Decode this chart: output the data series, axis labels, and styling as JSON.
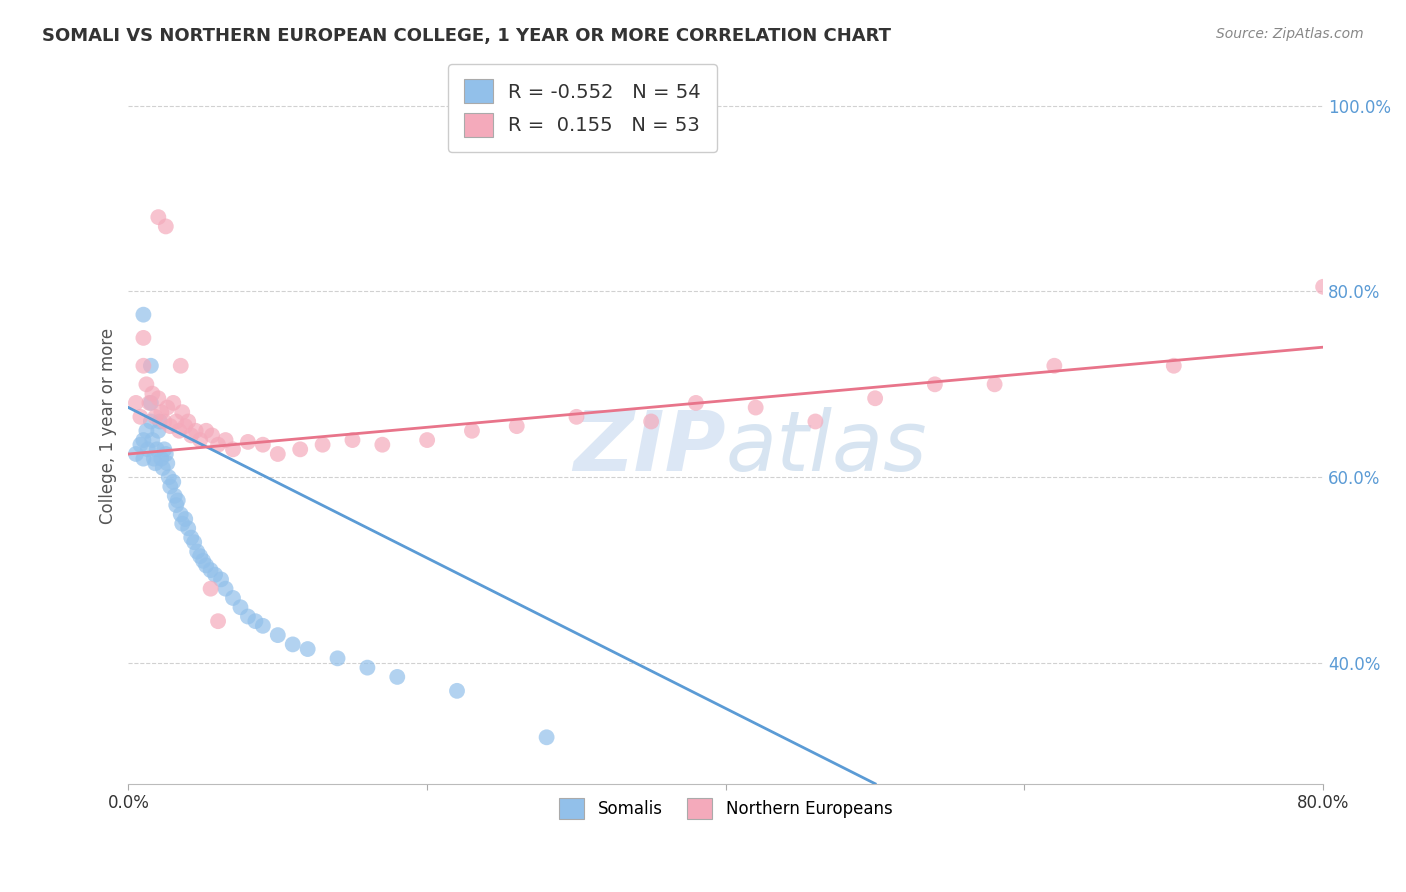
{
  "title": "SOMALI VS NORTHERN EUROPEAN COLLEGE, 1 YEAR OR MORE CORRELATION CHART",
  "source": "Source: ZipAtlas.com",
  "ylabel": "College, 1 year or more",
  "watermark": "ZIPatlas",
  "legend": {
    "blue_r": "-0.552",
    "blue_n": "54",
    "pink_r": "0.155",
    "pink_n": "53"
  },
  "ytick_labels": [
    "40.0%",
    "60.0%",
    "80.0%",
    "100.0%"
  ],
  "ytick_values": [
    0.4,
    0.6,
    0.8,
    1.0
  ],
  "xtick_values": [
    0.0,
    0.2,
    0.4,
    0.6,
    0.8
  ],
  "xtick_labels": [
    "0.0%",
    "",
    "",
    "",
    "80.0%"
  ],
  "xmin": 0.0,
  "xmax": 0.8,
  "ymin": 0.27,
  "ymax": 1.04,
  "blue_color": "#92C0EA",
  "pink_color": "#F4AABB",
  "blue_line_color": "#5B9BD5",
  "pink_line_color": "#E8748A",
  "blue_line_x0": 0.0,
  "blue_line_y0": 0.675,
  "blue_line_x1": 0.5,
  "blue_line_y1": 0.27,
  "pink_line_x0": 0.0,
  "pink_line_y0": 0.625,
  "pink_line_x1": 0.8,
  "pink_line_y1": 0.74,
  "somali_x": [
    0.005,
    0.008,
    0.01,
    0.01,
    0.012,
    0.013,
    0.015,
    0.015,
    0.016,
    0.017,
    0.018,
    0.019,
    0.02,
    0.021,
    0.022,
    0.023,
    0.024,
    0.025,
    0.026,
    0.027,
    0.028,
    0.03,
    0.031,
    0.032,
    0.033,
    0.035,
    0.036,
    0.038,
    0.04,
    0.042,
    0.044,
    0.046,
    0.048,
    0.05,
    0.052,
    0.055,
    0.058,
    0.062,
    0.065,
    0.07,
    0.075,
    0.08,
    0.085,
    0.09,
    0.1,
    0.11,
    0.12,
    0.14,
    0.16,
    0.18,
    0.22,
    0.01,
    0.28,
    0.015
  ],
  "somali_y": [
    0.625,
    0.635,
    0.64,
    0.62,
    0.65,
    0.63,
    0.68,
    0.66,
    0.64,
    0.62,
    0.615,
    0.63,
    0.65,
    0.66,
    0.62,
    0.61,
    0.63,
    0.625,
    0.615,
    0.6,
    0.59,
    0.595,
    0.58,
    0.57,
    0.575,
    0.56,
    0.55,
    0.555,
    0.545,
    0.535,
    0.53,
    0.52,
    0.515,
    0.51,
    0.505,
    0.5,
    0.495,
    0.49,
    0.48,
    0.47,
    0.46,
    0.45,
    0.445,
    0.44,
    0.43,
    0.42,
    0.415,
    0.405,
    0.395,
    0.385,
    0.37,
    0.775,
    0.32,
    0.72
  ],
  "northern_x": [
    0.005,
    0.008,
    0.01,
    0.012,
    0.014,
    0.016,
    0.018,
    0.02,
    0.022,
    0.024,
    0.026,
    0.028,
    0.03,
    0.032,
    0.034,
    0.036,
    0.038,
    0.04,
    0.042,
    0.045,
    0.048,
    0.052,
    0.056,
    0.06,
    0.065,
    0.07,
    0.08,
    0.09,
    0.1,
    0.115,
    0.13,
    0.15,
    0.17,
    0.2,
    0.23,
    0.26,
    0.3,
    0.35,
    0.38,
    0.42,
    0.46,
    0.5,
    0.54,
    0.58,
    0.62,
    0.7,
    0.01,
    0.02,
    0.025,
    0.035,
    0.055,
    0.06,
    0.8
  ],
  "northern_y": [
    0.68,
    0.665,
    0.72,
    0.7,
    0.68,
    0.69,
    0.665,
    0.685,
    0.67,
    0.66,
    0.675,
    0.655,
    0.68,
    0.66,
    0.65,
    0.67,
    0.655,
    0.66,
    0.645,
    0.65,
    0.64,
    0.65,
    0.645,
    0.635,
    0.64,
    0.63,
    0.638,
    0.635,
    0.625,
    0.63,
    0.635,
    0.64,
    0.635,
    0.64,
    0.65,
    0.655,
    0.665,
    0.66,
    0.68,
    0.675,
    0.66,
    0.685,
    0.7,
    0.7,
    0.72,
    0.72,
    0.75,
    0.88,
    0.87,
    0.72,
    0.48,
    0.445,
    0.805
  ],
  "grid_color": "#CCCCCC",
  "background_color": "#FFFFFF"
}
